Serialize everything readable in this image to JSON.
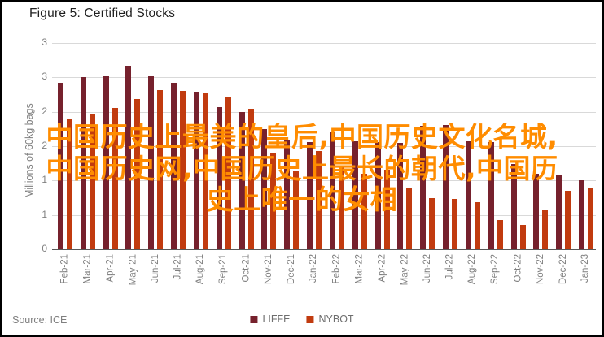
{
  "figure": {
    "title": "Figure 5: Certified Stocks",
    "source": "Source: ICE"
  },
  "overlay": {
    "lines": [
      "中国历史上最美的皇后,中国历史文化名城,",
      "中国历史网,中国历史上最长的朝代,中国历",
      "史上唯一的女相"
    ],
    "color": "#FF8C00"
  },
  "chart_data": {
    "type": "bar",
    "title": "Figure 5: Certified Stocks",
    "xlabel": "",
    "ylabel": "Millions of 60kg bags",
    "ylim": [
      0,
      3
    ],
    "ytick_interval": 0.5,
    "ytick_values_top_to_bottom": [
      3.0,
      2.5,
      2.0,
      1.5,
      1.0,
      0.5,
      0.0
    ],
    "ytick_labels_displayed_top_to_bottom": [
      "3",
      "3",
      "2",
      "2",
      "1",
      "1",
      "0"
    ],
    "grid": true,
    "legend_position": "bottom-center",
    "categories": [
      "Feb-21",
      "Mar-21",
      "Apr-21",
      "May-21",
      "Jun-21",
      "Jul-21",
      "Aug-21",
      "Sep-21",
      "Oct-21",
      "Nov-21",
      "Dec-21",
      "Jan-22",
      "Feb-22",
      "Mar-22",
      "Apr-22",
      "May-22",
      "Jun-22",
      "Jul-22",
      "Aug-22",
      "Sep-22",
      "Oct-22",
      "Nov-22",
      "Dec-22",
      "Jan-23"
    ],
    "series": [
      {
        "name": "LIFFE",
        "color": "#76212D",
        "values": [
          2.42,
          2.5,
          2.52,
          2.67,
          2.52,
          2.42,
          2.29,
          2.07,
          2.0,
          1.75,
          1.6,
          1.56,
          1.71,
          1.57,
          1.56,
          1.55,
          1.8,
          1.81,
          1.57,
          1.56,
          1.24,
          1.1,
          1.07,
          1.01
        ]
      },
      {
        "name": "NYBOT",
        "color": "#C13B0F",
        "values": [
          1.9,
          1.96,
          2.06,
          2.19,
          2.31,
          2.3,
          2.28,
          2.22,
          2.04,
          1.41,
          1.15,
          1.43,
          1.2,
          1.1,
          1.16,
          0.89,
          0.74,
          0.73,
          0.69,
          0.42,
          0.35,
          0.57,
          0.85,
          0.89
        ]
      }
    ]
  }
}
